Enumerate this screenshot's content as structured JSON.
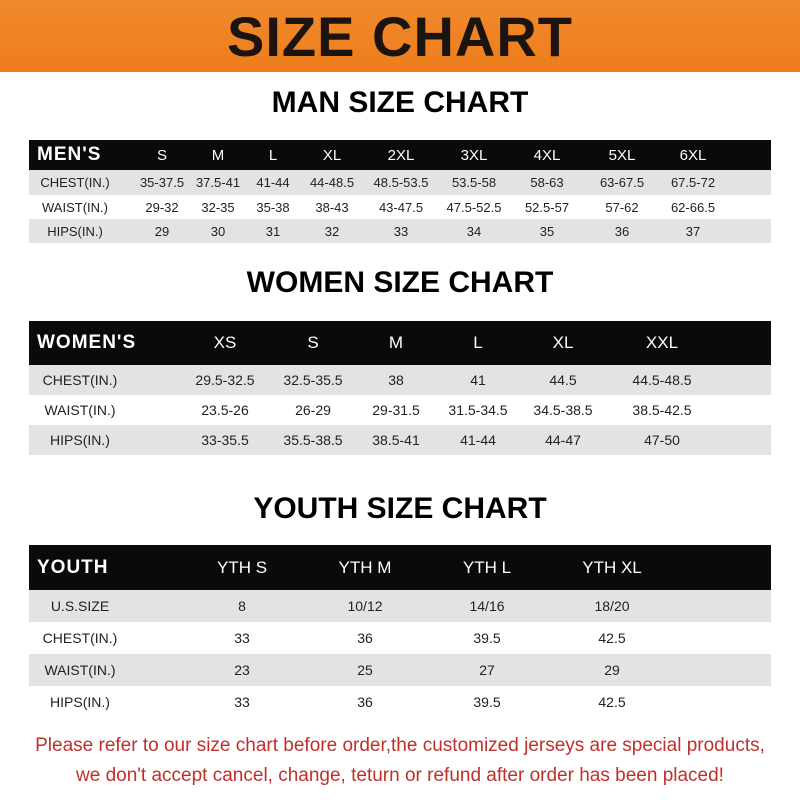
{
  "banner": {
    "title": "SIZE CHART",
    "color": "#ee7d1c"
  },
  "men": {
    "title": "MAN SIZE CHART",
    "header": [
      "MEN'S",
      "S",
      "M",
      "L",
      "XL",
      "2XL",
      "3XL",
      "4XL",
      "5XL",
      "6XL"
    ],
    "rows": [
      [
        "CHEST(IN.)",
        "35-37.5",
        "37.5-41",
        "41-44",
        "44-48.5",
        "48.5-53.5",
        "53.5-58",
        "58-63",
        "63-67.5",
        "67.5-72"
      ],
      [
        "WAIST(IN.)",
        "29-32",
        "32-35",
        "35-38",
        "38-43",
        "43-47.5",
        "47.5-52.5",
        "52.5-57",
        "57-62",
        "62-66.5"
      ],
      [
        "HIPS(IN.)",
        "29",
        "30",
        "31",
        "32",
        "33",
        "34",
        "35",
        "36",
        "37"
      ]
    ]
  },
  "women": {
    "title": "WOMEN SIZE CHART",
    "header": [
      "WOMEN'S",
      "XS",
      "S",
      "M",
      "L",
      "XL",
      "XXL"
    ],
    "rows": [
      [
        "CHEST(IN.)",
        "29.5-32.5",
        "32.5-35.5",
        "38",
        "41",
        "44.5",
        "44.5-48.5"
      ],
      [
        "WAIST(IN.)",
        "23.5-26",
        "26-29",
        "29-31.5",
        "31.5-34.5",
        "34.5-38.5",
        "38.5-42.5"
      ],
      [
        "HIPS(IN.)",
        "33-35.5",
        "35.5-38.5",
        "38.5-41",
        "41-44",
        "44-47",
        "47-50"
      ]
    ]
  },
  "youth": {
    "title": "YOUTH SIZE CHART",
    "header": [
      "YOUTH",
      "YTH S",
      "YTH M",
      "YTH L",
      "YTH XL"
    ],
    "rows": [
      [
        "U.S.SIZE",
        "8",
        "10/12",
        "14/16",
        "18/20"
      ],
      [
        "CHEST(IN.)",
        "33",
        "36",
        "39.5",
        "42.5"
      ],
      [
        "WAIST(IN.)",
        "23",
        "25",
        "27",
        "29"
      ],
      [
        "HIPS(IN.)",
        "33",
        "36",
        "39.5",
        "42.5"
      ]
    ]
  },
  "notice": {
    "line1": "Please refer to our size chart before order,the customized jerseys are special products,",
    "line2": "we don't accept cancel, change, teturn or refund after order has been placed!",
    "color": "#c0302b"
  }
}
